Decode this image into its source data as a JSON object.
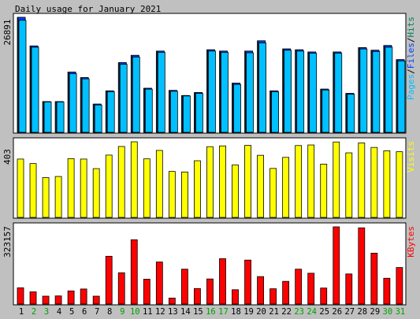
{
  "title": "Daily usage for January 2021",
  "colors": {
    "background": "#c0c0c0",
    "panel": "#ffffff",
    "hits": "#00805c",
    "files": "#0040ff",
    "pages": "#00c0ff",
    "visits": "#ffff00",
    "kbytes": "#ff0000",
    "weekend_label": "#00a000",
    "weekday_label": "#000000",
    "bar_border": "#000000"
  },
  "chart_data": [
    {
      "type": "bar",
      "name": "hits-files-pages",
      "max_label": "26891",
      "legend": [
        {
          "label": "Pages",
          "color_key": "pages"
        },
        {
          "label": "Files",
          "color_key": "files"
        },
        {
          "label": "Hits",
          "color_key": "hits"
        }
      ],
      "legend_separator": "/",
      "categories": [
        "1",
        "2",
        "3",
        "4",
        "5",
        "6",
        "7",
        "8",
        "9",
        "10",
        "11",
        "12",
        "13",
        "14",
        "15",
        "16",
        "17",
        "18",
        "19",
        "20",
        "21",
        "22",
        "23",
        "24",
        "25",
        "26",
        "27",
        "28",
        "29",
        "30",
        "31"
      ],
      "weekend": [
        false,
        true,
        true,
        false,
        false,
        false,
        false,
        false,
        true,
        true,
        false,
        false,
        false,
        false,
        false,
        true,
        true,
        false,
        false,
        false,
        false,
        false,
        true,
        true,
        false,
        false,
        false,
        false,
        false,
        true,
        true
      ],
      "series": [
        {
          "name": "Hits",
          "values": [
            26891,
            20200,
            7200,
            7200,
            14100,
            12800,
            6600,
            9700,
            16300,
            18000,
            10300,
            19000,
            9800,
            8600,
            9300,
            19300,
            19000,
            11500,
            19000,
            21400,
            9700,
            19500,
            19300,
            18800,
            10100,
            18800,
            9100,
            19800,
            19200,
            20300,
            17000
          ]
        },
        {
          "name": "Files",
          "values": [
            26891,
            20200,
            7200,
            7200,
            14100,
            12800,
            6600,
            9700,
            16300,
            18000,
            10300,
            19000,
            9800,
            8600,
            9300,
            19300,
            19000,
            11500,
            19000,
            21400,
            9700,
            19500,
            19300,
            18800,
            10100,
            18800,
            9100,
            19800,
            19200,
            20300,
            17000
          ]
        },
        {
          "name": "Pages",
          "values": [
            26200,
            19900,
            7100,
            7100,
            13700,
            12500,
            6400,
            9500,
            15900,
            17600,
            10100,
            18700,
            9600,
            8500,
            9100,
            19000,
            18700,
            11200,
            18600,
            20900,
            9500,
            19200,
            19000,
            18500,
            9900,
            18500,
            8900,
            19500,
            18900,
            19900,
            16700
          ]
        }
      ]
    },
    {
      "type": "bar",
      "name": "visits",
      "max_label": "403",
      "legend": [
        {
          "label": "Visits",
          "color_key": "visits"
        }
      ],
      "categories": [
        "1",
        "2",
        "3",
        "4",
        "5",
        "6",
        "7",
        "8",
        "9",
        "10",
        "11",
        "12",
        "13",
        "14",
        "15",
        "16",
        "17",
        "18",
        "19",
        "20",
        "21",
        "22",
        "23",
        "24",
        "25",
        "26",
        "27",
        "28",
        "29",
        "30",
        "31"
      ],
      "series": [
        {
          "name": "Visits",
          "values": [
            311,
            287,
            212,
            218,
            313,
            311,
            260,
            332,
            378,
            403,
            312,
            357,
            245,
            242,
            302,
            377,
            381,
            280,
            384,
            331,
            261,
            320,
            383,
            386,
            284,
            402,
            344,
            397,
            373,
            355,
            350
          ]
        }
      ]
    },
    {
      "type": "bar",
      "name": "kbytes",
      "max_label": "323157",
      "legend": [
        {
          "label": "KBytes",
          "color_key": "kbytes"
        }
      ],
      "categories": [
        "1",
        "2",
        "3",
        "4",
        "5",
        "6",
        "7",
        "8",
        "9",
        "10",
        "11",
        "12",
        "13",
        "14",
        "15",
        "16",
        "17",
        "18",
        "19",
        "20",
        "21",
        "22",
        "23",
        "24",
        "25",
        "26",
        "27",
        "28",
        "29",
        "30",
        "31"
      ],
      "series": [
        {
          "name": "KBytes",
          "values": [
            68000,
            51000,
            33000,
            34000,
            55000,
            63000,
            33000,
            200000,
            131000,
            269000,
            104000,
            176000,
            25000,
            146000,
            65000,
            105000,
            190000,
            60000,
            184000,
            115000,
            64000,
            95000,
            146000,
            129000,
            67000,
            323157,
            126000,
            319000,
            213000,
            108000,
            153000
          ]
        }
      ]
    }
  ]
}
